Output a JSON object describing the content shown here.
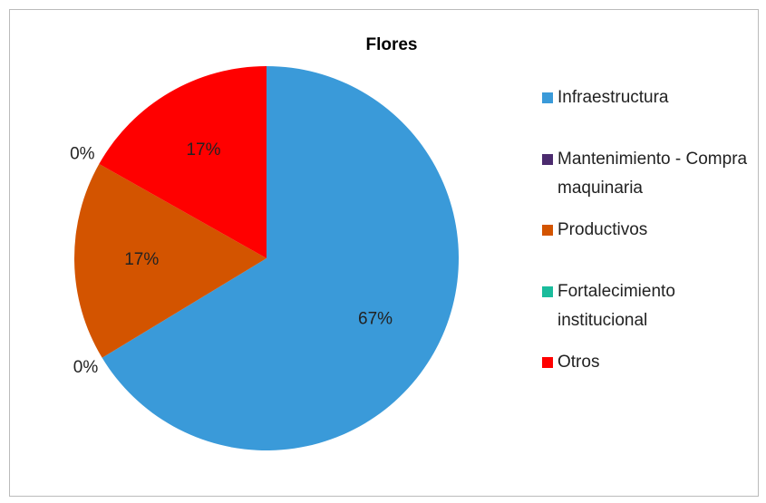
{
  "chart_data": {
    "type": "pie",
    "title": "Flores",
    "categories": [
      "Infraestructura",
      "Mantenimiento - Compra maquinaria",
      "Productivos",
      "Fortalecimiento institucional",
      "Otros"
    ],
    "values": [
      67,
      0,
      17,
      0,
      17
    ],
    "value_labels": [
      "67%",
      "0%",
      "17%",
      "0%",
      "17%"
    ],
    "colors": [
      "#3a9ad9",
      "#4b2b6e",
      "#d35400",
      "#1abc9c",
      "#ff0000"
    ],
    "legend": "right"
  }
}
